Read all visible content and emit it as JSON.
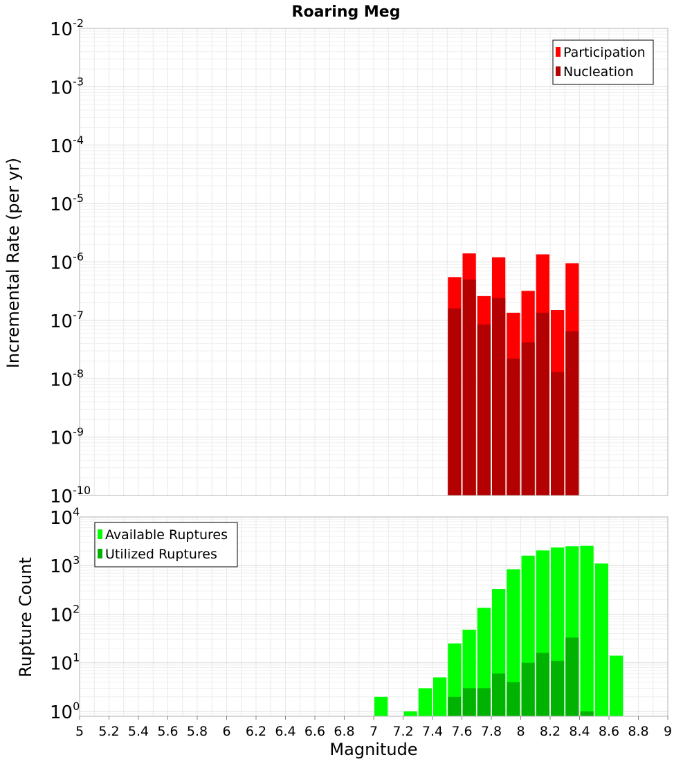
{
  "chart_data": [
    {
      "type": "bar",
      "panel": "top",
      "title": "Roaring Meg",
      "ylabel": "Incremental Rate (per yr)",
      "yscale": "log",
      "ylim_exp": [
        -10,
        -2
      ],
      "xlim": [
        5,
        9
      ],
      "bin_width": 0.1,
      "legend": "top-right",
      "series": [
        {
          "name": "Participation",
          "color": "#ff0000",
          "x": [
            7.55,
            7.65,
            7.75,
            7.85,
            7.95,
            8.05,
            8.15,
            8.25,
            8.35
          ],
          "values": [
            5.5e-07,
            1.4e-06,
            2.6e-07,
            1.2e-06,
            1.35e-07,
            3.2e-07,
            1.35e-06,
            1.5e-07,
            9.5e-07
          ]
        },
        {
          "name": "Nucleation",
          "color": "#b30000",
          "x": [
            7.55,
            7.65,
            7.75,
            7.85,
            7.95,
            8.05,
            8.15,
            8.25,
            8.35
          ],
          "values": [
            1.6e-07,
            5e-07,
            8.5e-08,
            2.4e-07,
            2.2e-08,
            4.2e-08,
            1.35e-07,
            1.3e-08,
            6.5e-08
          ]
        }
      ]
    },
    {
      "type": "bar",
      "panel": "bottom",
      "xlabel": "Magnitude",
      "ylabel": "Rupture Count",
      "yscale": "log",
      "ylim_exp": [
        -0.1,
        4
      ],
      "xlim": [
        5,
        9
      ],
      "bin_width": 0.1,
      "legend": "top-left",
      "xticks": [
        "5",
        "5.2",
        "5.4",
        "5.6",
        "5.8",
        "6",
        "6.2",
        "6.4",
        "6.6",
        "6.8",
        "7",
        "7.2",
        "7.4",
        "7.6",
        "7.8",
        "8",
        "8.2",
        "8.4",
        "8.6",
        "8.8",
        "9"
      ],
      "series": [
        {
          "name": "Available Ruptures",
          "color": "#00ff00",
          "x": [
            7.05,
            7.25,
            7.35,
            7.45,
            7.55,
            7.65,
            7.75,
            7.85,
            7.95,
            8.05,
            8.15,
            8.25,
            8.35,
            8.45,
            8.55,
            8.65
          ],
          "values": [
            2,
            1,
            3,
            5,
            25,
            48,
            135,
            330,
            840,
            1600,
            2050,
            2350,
            2500,
            2550,
            1100,
            14
          ]
        },
        {
          "name": "Utilized Ruptures",
          "color": "#00b300",
          "x": [
            7.55,
            7.65,
            7.75,
            7.85,
            7.95,
            8.05,
            8.15,
            8.25,
            8.35,
            8.45
          ],
          "values": [
            2,
            3,
            3,
            6,
            4,
            10,
            16,
            11,
            33,
            1
          ]
        }
      ]
    }
  ]
}
